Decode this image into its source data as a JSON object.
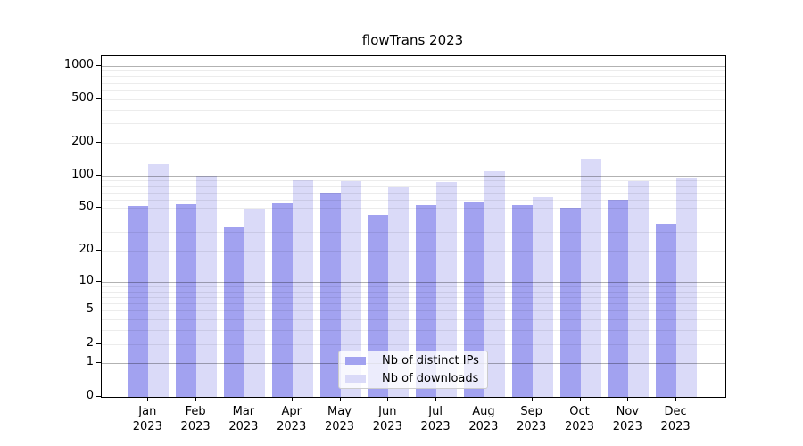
{
  "title": "flowTrans 2023",
  "chart_data": {
    "type": "bar",
    "title": "flowTrans 2023",
    "categories": [
      "Jan 2023",
      "Feb 2023",
      "Mar 2023",
      "Apr 2023",
      "May 2023",
      "Jun 2023",
      "Jul 2023",
      "Aug 2023",
      "Sep 2023",
      "Oct 2023",
      "Nov 2023",
      "Dec 2023"
    ],
    "series": [
      {
        "name": "Nb of distinct IPs",
        "color": "#a2a2f0",
        "values": [
          52,
          54,
          33,
          55,
          70,
          43,
          53,
          56,
          53,
          50,
          60,
          36
        ]
      },
      {
        "name": "Nb of downloads",
        "color": "#dadaf8",
        "values": [
          126,
          100,
          49,
          91,
          88,
          78,
          87,
          109,
          63,
          143,
          89,
          96
        ]
      }
    ],
    "xlabel": "",
    "ylabel": "",
    "y_axis": {
      "scale": "symlog-base10 (position ~ log10(value+1))",
      "tick_labels": [
        1000,
        500,
        200,
        100,
        50,
        20,
        10,
        5,
        2,
        1,
        0
      ],
      "ylim": [
        0,
        1200
      ]
    },
    "grid": "both (major gridlines at powers of 10, faint minor gridlines at 2-9 x 10^k), drawn above bars",
    "legend_position": "lower center"
  }
}
